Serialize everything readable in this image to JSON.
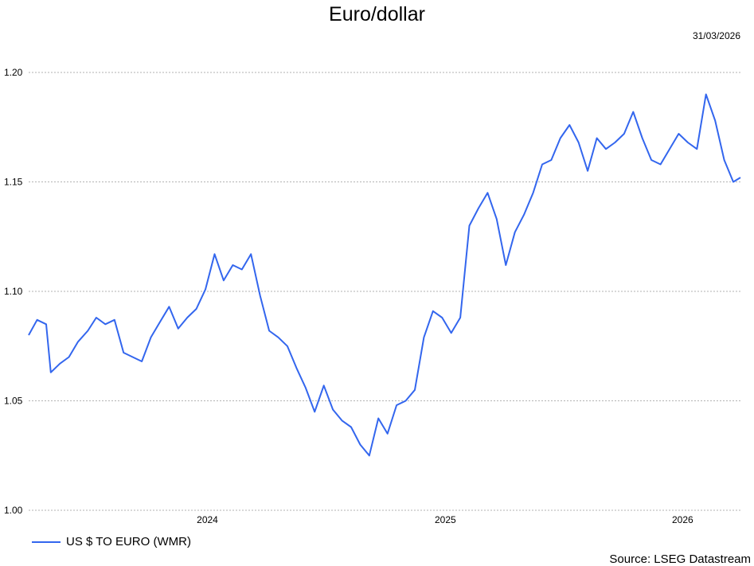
{
  "header": {
    "title": "Euro/dollar",
    "date": "31/03/2026"
  },
  "legend": {
    "label": "US $ TO EURO (WMR)",
    "color": "#3366ee"
  },
  "footer": {
    "source": "Source: LSEG Datastream"
  },
  "chart_data": {
    "type": "line",
    "title": "Euro/dollar",
    "xlabel": "",
    "ylabel": "",
    "ylim": [
      1.0,
      1.2
    ],
    "yticks": [
      "1.00",
      "1.05",
      "1.10",
      "1.15",
      "1.20"
    ],
    "xticks": [
      "2024",
      "2025",
      "2026"
    ],
    "xtick_dates": [
      "2024-01-01",
      "2025-01-01",
      "2026-01-01"
    ],
    "xlim": [
      "2023-04-01",
      "2026-03-31"
    ],
    "grid": true,
    "legend_position": "bottom-left",
    "series": [
      {
        "name": "US $ TO EURO (WMR)",
        "color": "#3366ee",
        "points": [
          [
            "2023-04-01",
            1.08
          ],
          [
            "2023-04-14",
            1.087
          ],
          [
            "2023-04-28",
            1.085
          ],
          [
            "2023-05-05",
            1.063
          ],
          [
            "2023-05-19",
            1.067
          ],
          [
            "2023-06-02",
            1.07
          ],
          [
            "2023-06-16",
            1.077
          ],
          [
            "2023-07-01",
            1.082
          ],
          [
            "2023-07-14",
            1.088
          ],
          [
            "2023-07-28",
            1.085
          ],
          [
            "2023-08-11",
            1.087
          ],
          [
            "2023-08-25",
            1.072
          ],
          [
            "2023-09-08",
            1.07
          ],
          [
            "2023-09-22",
            1.068
          ],
          [
            "2023-10-06",
            1.079
          ],
          [
            "2023-10-20",
            1.086
          ],
          [
            "2023-11-03",
            1.093
          ],
          [
            "2023-11-17",
            1.083
          ],
          [
            "2023-12-01",
            1.088
          ],
          [
            "2023-12-15",
            1.092
          ],
          [
            "2023-12-29",
            1.101
          ],
          [
            "2024-01-12",
            1.117
          ],
          [
            "2024-01-26",
            1.105
          ],
          [
            "2024-02-09",
            1.112
          ],
          [
            "2024-02-23",
            1.11
          ],
          [
            "2024-03-08",
            1.117
          ],
          [
            "2024-03-22",
            1.098
          ],
          [
            "2024-04-05",
            1.082
          ],
          [
            "2024-04-19",
            1.079
          ],
          [
            "2024-05-03",
            1.075
          ],
          [
            "2024-05-17",
            1.065
          ],
          [
            "2024-05-31",
            1.056
          ],
          [
            "2024-06-14",
            1.045
          ],
          [
            "2024-06-28",
            1.057
          ],
          [
            "2024-07-12",
            1.046
          ],
          [
            "2024-07-26",
            1.041
          ],
          [
            "2024-08-09",
            1.038
          ],
          [
            "2024-08-23",
            1.03
          ],
          [
            "2024-09-06",
            1.025
          ],
          [
            "2024-09-20",
            1.042
          ],
          [
            "2024-10-04",
            1.035
          ],
          [
            "2024-10-18",
            1.048
          ],
          [
            "2024-11-01",
            1.05
          ],
          [
            "2024-11-15",
            1.055
          ],
          [
            "2024-11-29",
            1.079
          ],
          [
            "2024-12-13",
            1.091
          ],
          [
            "2024-12-27",
            1.088
          ],
          [
            "2025-01-10",
            1.081
          ],
          [
            "2025-01-24",
            1.088
          ],
          [
            "2025-02-07",
            1.13
          ],
          [
            "2025-02-21",
            1.138
          ],
          [
            "2025-03-07",
            1.145
          ],
          [
            "2025-03-21",
            1.133
          ],
          [
            "2025-04-04",
            1.112
          ],
          [
            "2025-04-18",
            1.127
          ],
          [
            "2025-05-02",
            1.135
          ],
          [
            "2025-05-16",
            1.145
          ],
          [
            "2025-05-30",
            1.158
          ],
          [
            "2025-06-13",
            1.16
          ],
          [
            "2025-06-27",
            1.17
          ],
          [
            "2025-07-11",
            1.176
          ],
          [
            "2025-07-25",
            1.168
          ],
          [
            "2025-08-08",
            1.155
          ],
          [
            "2025-08-22",
            1.17
          ],
          [
            "2025-09-05",
            1.165
          ],
          [
            "2025-09-19",
            1.168
          ],
          [
            "2025-10-03",
            1.172
          ],
          [
            "2025-10-17",
            1.182
          ],
          [
            "2025-10-31",
            1.17
          ],
          [
            "2025-11-14",
            1.16
          ],
          [
            "2025-11-28",
            1.158
          ],
          [
            "2025-12-12",
            1.165
          ],
          [
            "2025-12-26",
            1.172
          ],
          [
            "2026-01-09",
            1.168
          ],
          [
            "2026-01-23",
            1.165
          ],
          [
            "2026-02-06",
            1.19
          ],
          [
            "2026-02-20",
            1.178
          ],
          [
            "2026-03-06",
            1.16
          ],
          [
            "2026-03-20",
            1.15
          ],
          [
            "2026-03-31",
            1.152
          ]
        ]
      }
    ]
  }
}
